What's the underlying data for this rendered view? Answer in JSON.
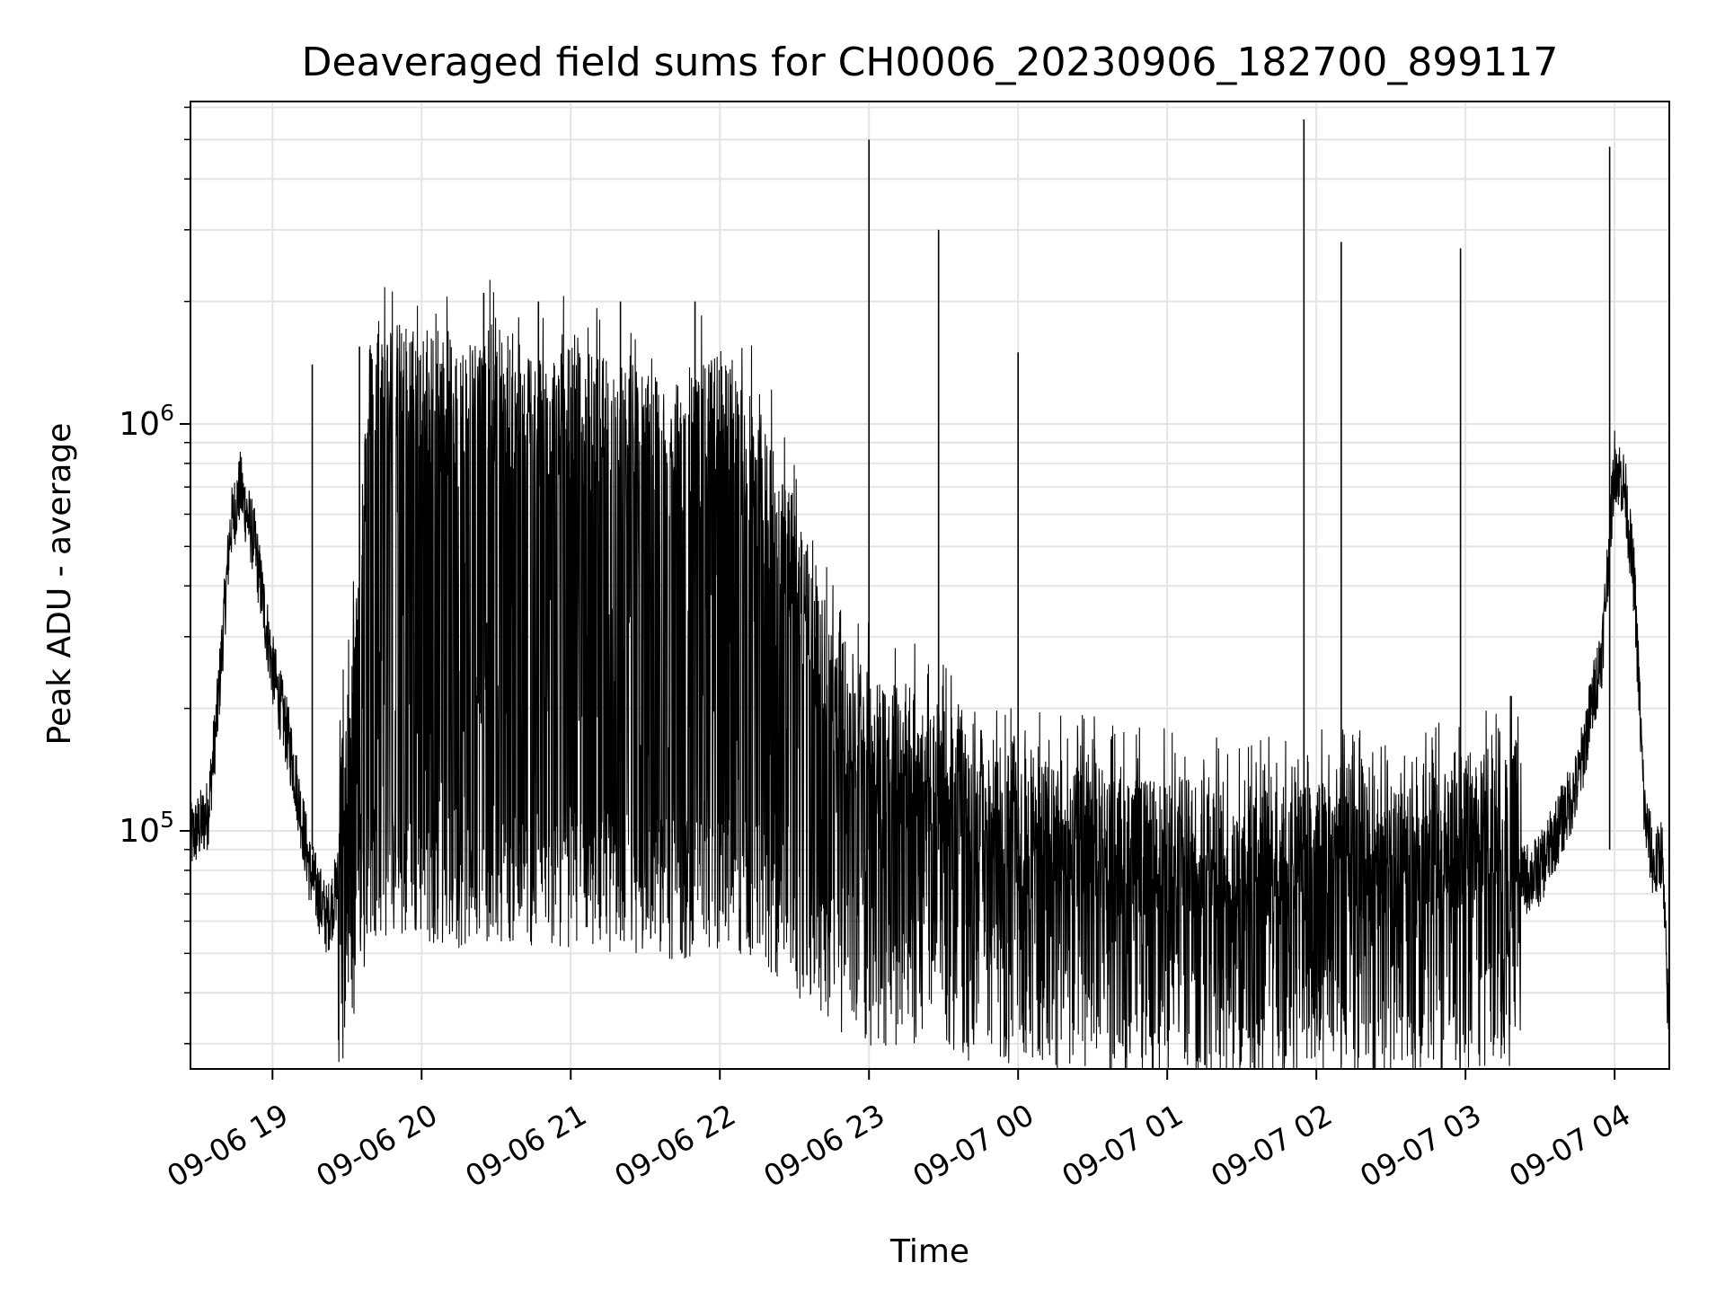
{
  "chart_data": {
    "type": "line",
    "title": "Deaveraged field sums for CH0006_20230906_182700_899117",
    "xlabel": "Time",
    "ylabel": "Peak ADU - average",
    "y_scale": "log",
    "ylim": [
      26000,
      6200000
    ],
    "xlim": [
      "2023-09-06 18:27",
      "2023-09-07 04:22"
    ],
    "grid": true,
    "x_ticks": [
      {
        "value": "2023-09-06 19:00",
        "label": "09-06 19"
      },
      {
        "value": "2023-09-06 20:00",
        "label": "09-06 20"
      },
      {
        "value": "2023-09-06 21:00",
        "label": "09-06 21"
      },
      {
        "value": "2023-09-06 22:00",
        "label": "09-06 22"
      },
      {
        "value": "2023-09-06 23:00",
        "label": "09-06 23"
      },
      {
        "value": "2023-09-07 00:00",
        "label": "09-07 00"
      },
      {
        "value": "2023-09-07 01:00",
        "label": "09-07 01"
      },
      {
        "value": "2023-09-07 02:00",
        "label": "09-07 02"
      },
      {
        "value": "2023-09-07 03:00",
        "label": "09-07 03"
      },
      {
        "value": "2023-09-07 04:00",
        "label": "09-07 04"
      }
    ],
    "y_ticks": [
      {
        "value": 100000,
        "base": "10",
        "exp": "5"
      },
      {
        "value": 1000000,
        "base": "10",
        "exp": "6"
      }
    ],
    "line_color": "#000000",
    "series": [
      {
        "x": [
          "2023-09-06 18:27",
          "2023-09-06 18:34",
          "2023-09-06 18:38",
          "2023-09-06 18:43",
          "2023-09-06 18:47",
          "2023-09-06 18:53",
          "2023-09-06 19:00",
          "2023-09-06 19:08",
          "2023-09-06 19:15",
          "2023-09-06 19:22",
          "2023-09-06 19:30",
          "2023-09-06 19:40",
          "2023-09-06 19:50",
          "2023-09-06 20:00",
          "2023-09-06 20:15",
          "2023-09-06 20:30",
          "2023-09-06 20:45",
          "2023-09-06 21:00",
          "2023-09-06 21:15",
          "2023-09-06 21:30",
          "2023-09-06 21:45",
          "2023-09-06 22:00",
          "2023-09-06 22:15",
          "2023-09-06 22:30",
          "2023-09-06 22:45",
          "2023-09-06 23:00",
          "2023-09-06 23:15",
          "2023-09-06 23:30",
          "2023-09-06 23:45",
          "2023-09-07 00:00",
          "2023-09-07 00:15",
          "2023-09-07 00:30",
          "2023-09-07 00:45",
          "2023-09-07 01:00",
          "2023-09-07 01:15",
          "2023-09-07 01:30",
          "2023-09-07 01:45",
          "2023-09-07 02:00",
          "2023-09-07 02:15",
          "2023-09-07 02:30",
          "2023-09-07 02:45",
          "2023-09-07 03:00",
          "2023-09-07 03:15",
          "2023-09-07 03:30",
          "2023-09-07 03:45",
          "2023-09-07 03:55",
          "2023-09-07 04:00",
          "2023-09-07 04:04",
          "2023-09-07 04:08",
          "2023-09-07 04:12",
          "2023-09-07 04:16",
          "2023-09-07 04:19",
          "2023-09-07 04:22"
        ],
        "values": [
          95000,
          110000,
          200000,
          550000,
          700000,
          500000,
          250000,
          150000,
          80000,
          60000,
          90000,
          900000,
          800000,
          800000,
          700000,
          800000,
          700000,
          700000,
          650000,
          600000,
          550000,
          700000,
          500000,
          300000,
          150000,
          110000,
          100000,
          90000,
          80000,
          70000,
          65000,
          65000,
          60000,
          60000,
          60000,
          55000,
          58000,
          60000,
          60000,
          55000,
          60000,
          65000,
          70000,
          80000,
          130000,
          280000,
          800000,
          700000,
          400000,
          110000,
          80000,
          90000,
          30000
        ]
      },
      {
        "name": "",
        "x": [
          "2023-09-06 19:16",
          "2023-09-06 19:35",
          "2023-09-06 20:02",
          "2023-09-06 20:25",
          "2023-09-06 20:47",
          "2023-09-06 21:20",
          "2023-09-06 21:50",
          "2023-09-06 23:00",
          "2023-09-06 23:28",
          "2023-09-07 00:00",
          "2023-09-07 01:55",
          "2023-09-07 02:10",
          "2023-09-07 02:58",
          "2023-09-07 03:58"
        ],
        "values": [
          1400000,
          1550000,
          1500000,
          2100000,
          2000000,
          2000000,
          2000000,
          5000000,
          3000000,
          1500000,
          5600000,
          2800000,
          2700000,
          4800000
        ]
      }
    ]
  }
}
